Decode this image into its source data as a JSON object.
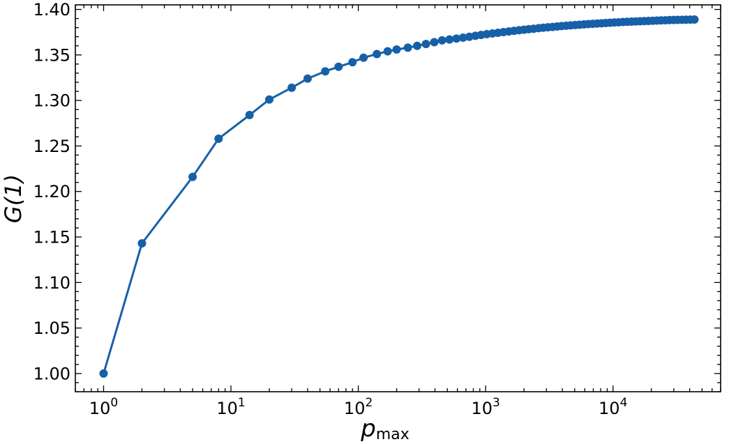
{
  "chart_data": {
    "type": "line",
    "xscale": "log",
    "xlim": [
      0.6,
      70000
    ],
    "ylim": [
      0.98,
      1.405
    ],
    "grid": false,
    "xlabel": "p",
    "xlabel_sub": "max",
    "ylabel": "G(1)",
    "x_ticks": [
      {
        "value": 1,
        "base": "10",
        "exp": "0"
      },
      {
        "value": 10,
        "base": "10",
        "exp": "1"
      },
      {
        "value": 100,
        "base": "10",
        "exp": "2"
      },
      {
        "value": 1000,
        "base": "10",
        "exp": "3"
      },
      {
        "value": 10000,
        "base": "10",
        "exp": "4"
      }
    ],
    "y_ticks": [
      {
        "value": 1.0,
        "label": "1.00"
      },
      {
        "value": 1.05,
        "label": "1.05"
      },
      {
        "value": 1.1,
        "label": "1.10"
      },
      {
        "value": 1.15,
        "label": "1.15"
      },
      {
        "value": 1.2,
        "label": "1.20"
      },
      {
        "value": 1.25,
        "label": "1.25"
      },
      {
        "value": 1.3,
        "label": "1.30"
      },
      {
        "value": 1.35,
        "label": "1.35"
      },
      {
        "value": 1.4,
        "label": "1.40"
      }
    ],
    "series": [
      {
        "color": "#1660a8",
        "x": [
          1,
          2,
          5,
          8,
          14,
          20,
          30,
          40,
          55,
          70,
          90,
          110,
          140,
          170,
          200,
          245,
          290,
          340,
          395,
          455,
          520,
          590,
          665,
          745,
          830,
          920,
          1020,
          1130,
          1250,
          1380,
          1520,
          1670,
          1830,
          2000,
          2180,
          2380,
          2600,
          2830,
          3080,
          3350,
          3640,
          3950,
          4290,
          4650,
          5040,
          5460,
          5910,
          6400,
          6930,
          7500,
          8110,
          8770,
          9480,
          10250,
          11080,
          11970,
          12930,
          13970,
          15090,
          16290,
          17590,
          18990,
          20490,
          22110,
          23850,
          25730,
          27750,
          29930,
          32270,
          34800,
          37520,
          40450,
          43600
        ],
        "y": [
          1.0,
          1.143,
          1.216,
          1.258,
          1.284,
          1.301,
          1.314,
          1.324,
          1.332,
          1.337,
          1.342,
          1.347,
          1.351,
          1.354,
          1.356,
          1.358,
          1.36,
          1.362,
          1.364,
          1.366,
          1.367,
          1.368,
          1.369,
          1.37,
          1.371,
          1.372,
          1.3728,
          1.3736,
          1.3744,
          1.3751,
          1.3758,
          1.3765,
          1.3771,
          1.3777,
          1.3783,
          1.3788,
          1.3794,
          1.3799,
          1.3804,
          1.3808,
          1.3813,
          1.3817,
          1.3821,
          1.3825,
          1.3829,
          1.3832,
          1.3836,
          1.3839,
          1.3842,
          1.3845,
          1.3848,
          1.3851,
          1.3854,
          1.3857,
          1.3859,
          1.3862,
          1.3864,
          1.3866,
          1.3868,
          1.387,
          1.3872,
          1.3874,
          1.3876,
          1.3878,
          1.388,
          1.3881,
          1.3883,
          1.3884,
          1.3885,
          1.3886,
          1.3887,
          1.3888,
          1.3889
        ]
      }
    ]
  }
}
